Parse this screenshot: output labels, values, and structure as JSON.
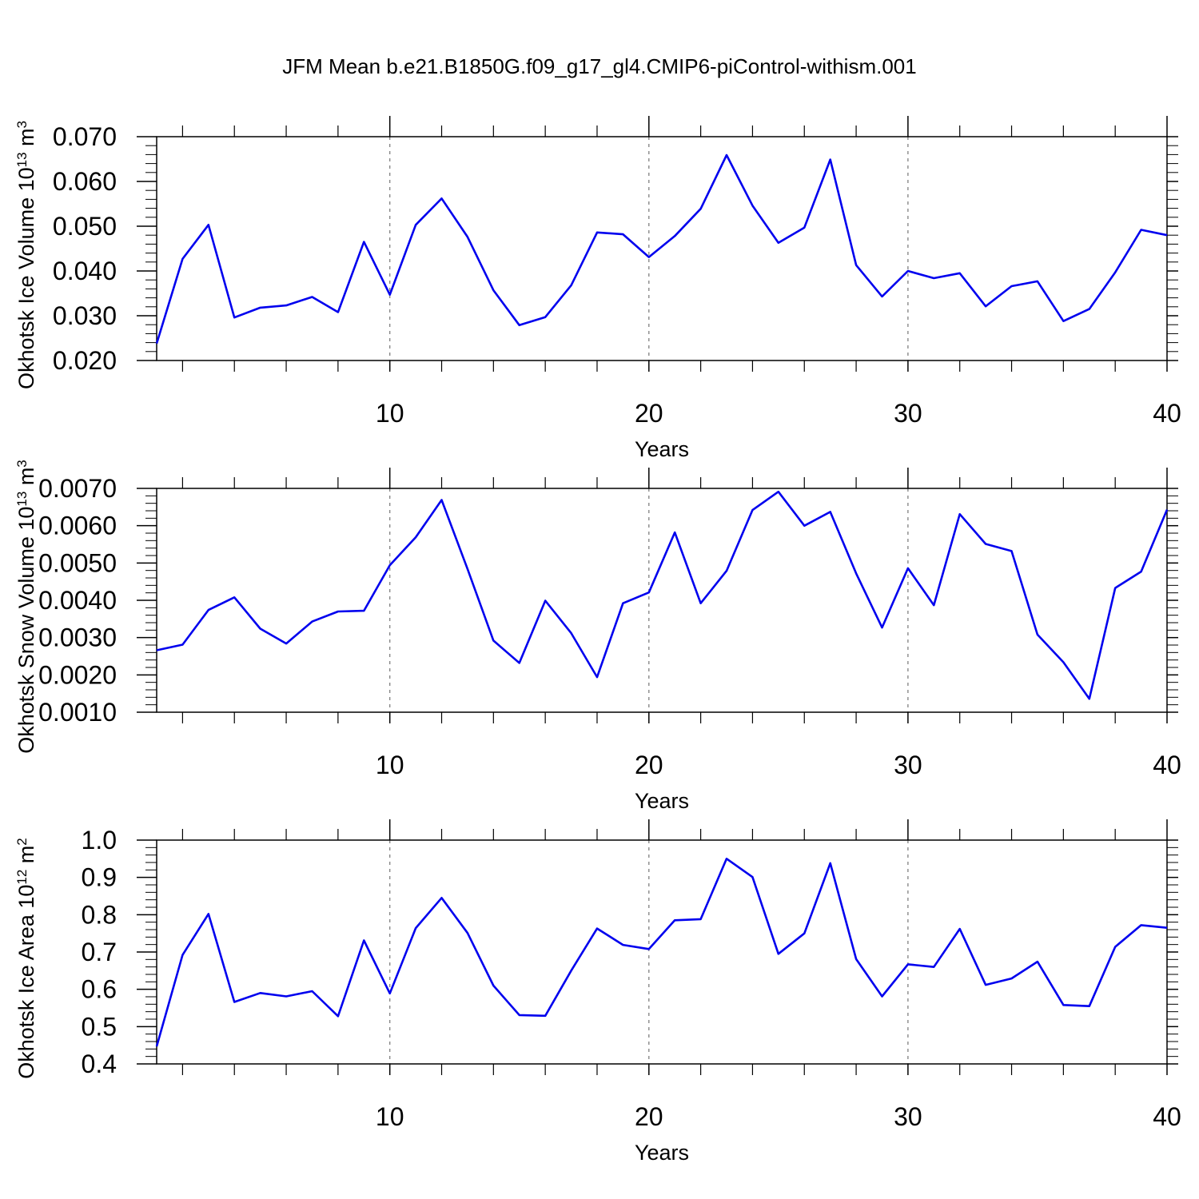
{
  "title": "JFM Mean b.e21.B1850G.f09_g17_gl4.CMIP6-piControl-withism.001",
  "chart_data": [
    {
      "type": "line",
      "ylabel_main": "Okhotsk Ice Volume 10",
      "ylabel_exp": "13",
      "ylabel_unit": " m",
      "ylabel_unit_exp": "3",
      "xlabel": "Years",
      "xlim": [
        1,
        40
      ],
      "ylim": [
        0.02,
        0.07
      ],
      "yticks": [
        "0.020",
        "0.030",
        "0.040",
        "0.050",
        "0.060",
        "0.070"
      ],
      "xticks": [
        "10",
        "20",
        "30",
        "40"
      ],
      "grid": "vertical dashed at 10, 20, 30",
      "color": "#0000ee",
      "x": [
        1,
        2,
        3,
        4,
        5,
        6,
        7,
        8,
        9,
        10,
        11,
        12,
        13,
        14,
        15,
        16,
        17,
        18,
        19,
        20,
        21,
        22,
        23,
        24,
        25,
        26,
        27,
        28,
        29,
        30,
        31,
        32,
        33,
        34,
        35,
        36,
        37,
        38,
        39,
        40
      ],
      "values": [
        0.0238,
        0.0427,
        0.0503,
        0.0296,
        0.0318,
        0.0323,
        0.0342,
        0.0308,
        0.0465,
        0.0347,
        0.0503,
        0.0562,
        0.0476,
        0.0357,
        0.0279,
        0.0297,
        0.0368,
        0.0486,
        0.0482,
        0.0431,
        0.0478,
        0.0539,
        0.0659,
        0.0546,
        0.0463,
        0.0497,
        0.0649,
        0.0413,
        0.0343,
        0.04,
        0.0384,
        0.0395,
        0.0321,
        0.0366,
        0.0377,
        0.0288,
        0.0315,
        0.0397,
        0.0492,
        0.048
      ]
    },
    {
      "type": "line",
      "ylabel_main": "Okhotsk Snow Volume 10",
      "ylabel_exp": "13",
      "ylabel_unit": " m",
      "ylabel_unit_exp": "3",
      "xlabel": "Years",
      "xlim": [
        1,
        40
      ],
      "ylim": [
        0.001,
        0.007
      ],
      "yticks": [
        "0.0010",
        "0.0020",
        "0.0030",
        "0.0040",
        "0.0050",
        "0.0060",
        "0.0070"
      ],
      "xticks": [
        "10",
        "20",
        "30",
        "40"
      ],
      "grid": "vertical dashed at 10, 20, 30",
      "color": "#0000ee",
      "x": [
        1,
        2,
        3,
        4,
        5,
        6,
        7,
        8,
        9,
        10,
        11,
        12,
        13,
        14,
        15,
        16,
        17,
        18,
        19,
        20,
        21,
        22,
        23,
        24,
        25,
        26,
        27,
        28,
        29,
        30,
        31,
        32,
        33,
        34,
        35,
        36,
        37,
        38,
        39,
        40
      ],
      "values": [
        0.00266,
        0.00281,
        0.00374,
        0.00408,
        0.00324,
        0.00284,
        0.00343,
        0.0037,
        0.00372,
        0.00494,
        0.00569,
        0.00669,
        0.00484,
        0.00292,
        0.00232,
        0.00399,
        0.00312,
        0.00194,
        0.00392,
        0.00421,
        0.00582,
        0.00392,
        0.00479,
        0.00642,
        0.00691,
        0.006,
        0.00637,
        0.00472,
        0.00327,
        0.00486,
        0.00387,
        0.00631,
        0.00551,
        0.00532,
        0.00308,
        0.00234,
        0.00136,
        0.00433,
        0.00477,
        0.00643
      ]
    },
    {
      "type": "line",
      "ylabel_main": "Okhotsk Ice Area 10",
      "ylabel_exp": "12",
      "ylabel_unit": " m",
      "ylabel_unit_exp": "2",
      "xlabel": "Years",
      "xlim": [
        1,
        40
      ],
      "ylim": [
        0.4,
        1.0
      ],
      "yticks": [
        "0.4",
        "0.5",
        "0.6",
        "0.7",
        "0.8",
        "0.9",
        "1.0"
      ],
      "xticks": [
        "10",
        "20",
        "30",
        "40"
      ],
      "grid": "vertical dashed at 10, 20, 30",
      "color": "#0000ee",
      "x": [
        1,
        2,
        3,
        4,
        5,
        6,
        7,
        8,
        9,
        10,
        11,
        12,
        13,
        14,
        15,
        16,
        17,
        18,
        19,
        20,
        21,
        22,
        23,
        24,
        25,
        26,
        27,
        28,
        29,
        30,
        31,
        32,
        33,
        34,
        35,
        36,
        37,
        38,
        39,
        40
      ],
      "values": [
        0.447,
        0.692,
        0.802,
        0.566,
        0.59,
        0.581,
        0.595,
        0.528,
        0.731,
        0.589,
        0.764,
        0.845,
        0.751,
        0.61,
        0.531,
        0.529,
        0.65,
        0.763,
        0.719,
        0.708,
        0.785,
        0.788,
        0.95,
        0.901,
        0.695,
        0.75,
        0.938,
        0.681,
        0.581,
        0.667,
        0.66,
        0.762,
        0.612,
        0.629,
        0.674,
        0.558,
        0.555,
        0.714,
        0.772,
        0.765
      ]
    }
  ]
}
